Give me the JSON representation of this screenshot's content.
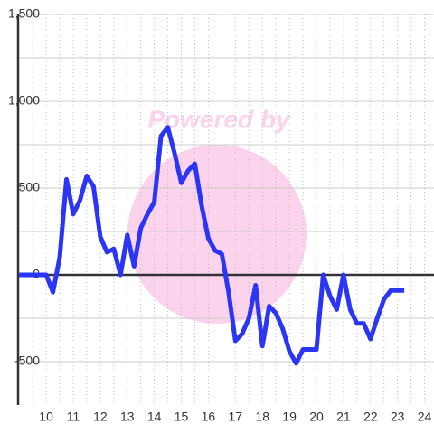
{
  "chart_data": {
    "type": "line",
    "watermark": "Powered by",
    "x": [
      9,
      9.5,
      10,
      10.25,
      10.5,
      10.75,
      11,
      11.25,
      11.5,
      11.75,
      12,
      12.25,
      12.5,
      12.75,
      13,
      13.25,
      13.5,
      13.75,
      14,
      14.25,
      14.5,
      14.75,
      15,
      15.25,
      15.5,
      15.75,
      16,
      16.25,
      16.5,
      16.75,
      17,
      17.25,
      17.5,
      17.75,
      18,
      18.25,
      18.5,
      18.75,
      19,
      19.25,
      19.5,
      20,
      20.25,
      20.5,
      20.75,
      21,
      21.25,
      21.5,
      21.75,
      22,
      22.25,
      22.5,
      22.75,
      23.25
    ],
    "series": [
      {
        "color": "#2a35f5",
        "values": [
          0,
          0,
          0,
          -100,
          100,
          550,
          350,
          430,
          570,
          510,
          220,
          130,
          150,
          0,
          230,
          50,
          270,
          350,
          420,
          800,
          850,
          700,
          530,
          600,
          640,
          400,
          210,
          140,
          120,
          -100,
          -380,
          -340,
          -250,
          -60,
          -410,
          -180,
          -220,
          -310,
          -440,
          -510,
          -430,
          -430,
          0,
          -120,
          -200,
          0,
          -200,
          -280,
          -280,
          -370,
          -250,
          -140,
          -90,
          -90
        ]
      }
    ],
    "xlim": [
      8.96,
      24.35
    ],
    "xticks": [
      10,
      11,
      12,
      13,
      14,
      15,
      16,
      17,
      18,
      19,
      20,
      21,
      22,
      23,
      24
    ],
    "xgrid": [
      9.5,
      10,
      10.5,
      11,
      11.5,
      12,
      12.5,
      13,
      13.5,
      14,
      14.5,
      15,
      15.5,
      16,
      16.5,
      17,
      17.5,
      18,
      18.5,
      19,
      19.5,
      20,
      20.5,
      21,
      21.5,
      22,
      22.5,
      23,
      23.5,
      24
    ],
    "ylim": [
      -750,
      1500
    ],
    "yticks": [
      -500,
      0,
      500,
      {
        "value": 1000,
        "label": "1,000"
      },
      {
        "value": 1500,
        "label": "1,500"
      }
    ],
    "ygrid": [
      -250,
      250,
      750,
      1250
    ],
    "grid": true
  }
}
